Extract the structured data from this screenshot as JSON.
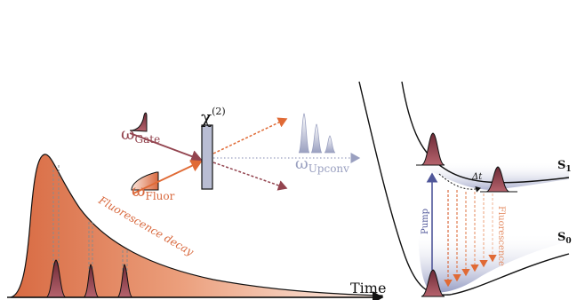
{
  "labels": {
    "time_axis": "Time",
    "fluorescence_decay": "Fluorescence decay",
    "chi_symbol": "χ",
    "chi_order": "(2)",
    "omega": "ω",
    "gate_sub": "Gate",
    "fluor_sub": "Fluor",
    "upconv_sub": "Upconv",
    "pump": "Pump",
    "fluorescence": "Fluorescence",
    "delta_t": "Δt",
    "state_s": "S",
    "s1_sub": "1",
    "s0_sub": "0"
  },
  "colors": {
    "decay_dark": "#d9714a",
    "decay_light": "#f9ddd0",
    "gate_pulse": "#8e3f4b",
    "fluor_arrow": "#e06a35",
    "gate_arrow": "#93444f",
    "upconv": "#9aa0c0",
    "crystal": "#b9bdd3",
    "state_band": "#a7acc9",
    "pump_arrow": "#4f5699"
  }
}
